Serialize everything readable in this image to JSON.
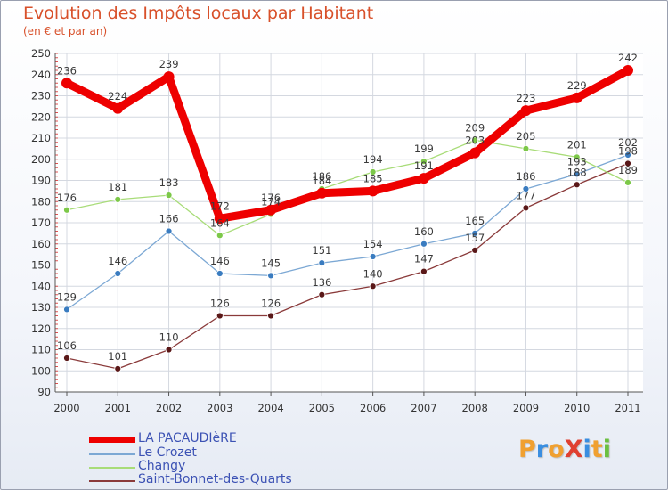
{
  "header": {
    "title": "Evolution des Impôts locaux par Habitant",
    "subtitle": "(en € et par an)"
  },
  "logo": {
    "text": "ProXiti",
    "letters": [
      "P",
      "r",
      "o",
      "X",
      "i",
      "t",
      "i"
    ],
    "colors": [
      "#f0a030",
      "#3a8ee0",
      "#f0a030",
      "#e04030",
      "#3a8ee0",
      "#f0a030",
      "#6bc040"
    ]
  },
  "chart_data": {
    "type": "line",
    "title": "Evolution des Impôts locaux par Habitant",
    "subtitle": "(en € et par an)",
    "xlabel": "",
    "ylabel": "",
    "categories": [
      "2000",
      "2001",
      "2002",
      "2003",
      "2004",
      "2005",
      "2006",
      "2007",
      "2008",
      "2009",
      "2010",
      "2011"
    ],
    "ylim": [
      90,
      250
    ],
    "yticks": [
      "90",
      "100",
      "110",
      "120",
      "130",
      "140",
      "150",
      "160",
      "170",
      "180",
      "190",
      "200",
      "210",
      "220",
      "230",
      "240",
      "250"
    ],
    "grid": true,
    "legend": "bottom-left",
    "series": [
      {
        "name": "LA PACAUDIèRE",
        "color": "#ee0000",
        "marker_color": "#ee0000",
        "values": [
          236,
          224,
          239,
          172,
          176,
          184,
          185,
          191,
          203,
          223,
          229,
          242
        ],
        "labels": [
          "236",
          "224",
          "239",
          "172",
          "176",
          "184",
          "185",
          "191",
          "203",
          "223",
          "229",
          "242"
        ]
      },
      {
        "name": "Le Crozet",
        "color": "#7ca8d4",
        "marker_color": "#3a7cc0",
        "values": [
          129,
          146,
          166,
          146,
          145,
          151,
          154,
          160,
          165,
          186,
          193,
          202
        ],
        "labels": [
          "129",
          "146",
          "166",
          "146",
          "145",
          "151",
          "154",
          "160",
          "165",
          "186",
          "193",
          "202"
        ]
      },
      {
        "name": "Changy",
        "color": "#a8dc78",
        "marker_color": "#7cc848",
        "values": [
          176,
          181,
          183,
          164,
          174,
          186,
          194,
          199,
          209,
          205,
          201,
          189
        ],
        "labels": [
          "176",
          "181",
          "183",
          "164",
          "174",
          "186",
          "194",
          "199",
          "209",
          "205",
          "201",
          "189"
        ]
      },
      {
        "name": "Saint-Bonnet-des-Quarts",
        "color": "#8a3a3a",
        "marker_color": "#5a1818",
        "values": [
          106,
          101,
          110,
          126,
          126,
          136,
          140,
          147,
          157,
          177,
          188,
          198
        ],
        "labels": [
          "106",
          "101",
          "110",
          "126",
          "126",
          "136",
          "140",
          "147",
          "157",
          "177",
          "188",
          "198"
        ]
      }
    ]
  }
}
